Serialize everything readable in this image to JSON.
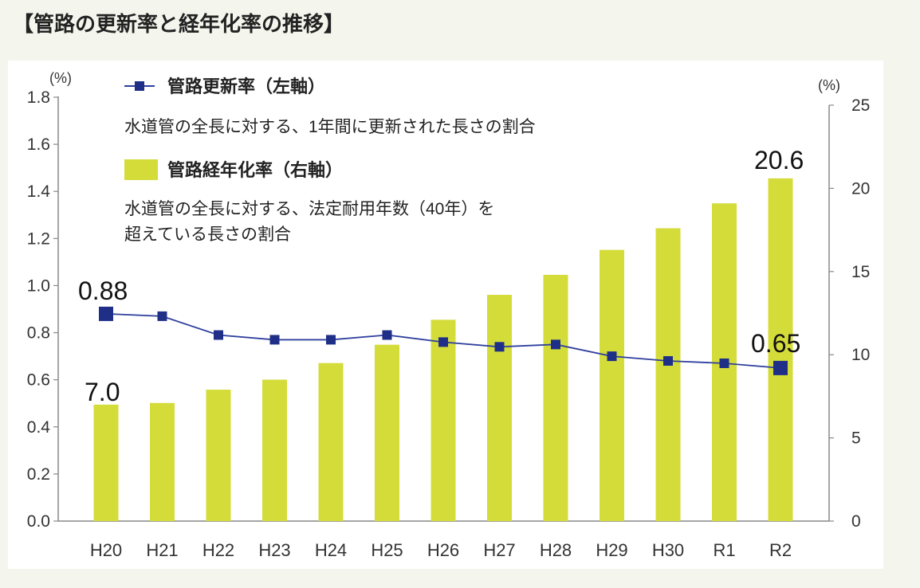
{
  "title": "【管路の更新率と経年化率の推移】",
  "colors": {
    "background": "#f4f6ee",
    "panel": "#ffffff",
    "bar": "#d4dc3a",
    "line": "#2f3f9e",
    "marker": "#1f2f88",
    "axis": "#888888"
  },
  "legend": {
    "line_label": "管路更新率（左軸）",
    "line_desc": "水道管の全長に対する、1年間に更新された長さの割合",
    "bar_label": "管路経年化率（右軸）",
    "bar_desc_1": "水道管の全長に対する、法定耐用年数（40年）を",
    "bar_desc_2": "超えている長さの割合"
  },
  "chart_data": {
    "type": "bar+line",
    "categories": [
      "H20",
      "H21",
      "H22",
      "H23",
      "H24",
      "H25",
      "H26",
      "H27",
      "H28",
      "H29",
      "H30",
      "R1",
      "R2"
    ],
    "series": [
      {
        "name": "管路更新率（左軸）",
        "type": "line",
        "axis": "left",
        "values": [
          0.88,
          0.87,
          0.79,
          0.77,
          0.77,
          0.79,
          0.76,
          0.74,
          0.75,
          0.7,
          0.68,
          0.67,
          0.65
        ]
      },
      {
        "name": "管路経年化率（右軸）",
        "type": "bar",
        "axis": "right",
        "values": [
          7.0,
          7.1,
          7.9,
          8.5,
          9.5,
          10.6,
          12.1,
          13.6,
          14.8,
          16.3,
          17.6,
          19.1,
          20.6
        ]
      }
    ],
    "left_axis": {
      "unit": "(%)",
      "ylim": [
        0,
        1.8
      ],
      "ticks": [
        "0.0",
        "0.2",
        "0.4",
        "0.6",
        "0.8",
        "1.0",
        "1.2",
        "1.4",
        "1.6",
        "1.8"
      ]
    },
    "right_axis": {
      "unit": "(%)",
      "ylim": [
        0,
        25
      ],
      "ticks": [
        "0",
        "5",
        "10",
        "15",
        "20",
        "25"
      ]
    },
    "annotations": {
      "line_first": "0.88",
      "line_last": "0.65",
      "bar_first": "7.0",
      "bar_last": "20.6"
    }
  }
}
